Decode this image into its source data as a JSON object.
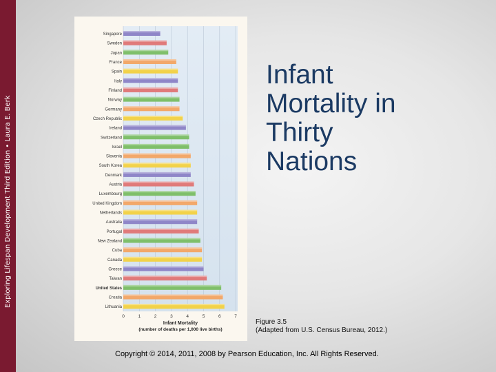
{
  "sidebar": {
    "text": "Exploring Lifespan Development Third Edition • Laura E. Berk"
  },
  "slide": {
    "title": "Infant Mortality in Thirty Nations",
    "caption_line1": "Figure 3.5",
    "caption_line2": "(Adapted from U.S. Census Bureau, 2012.)",
    "copyright": "Copyright © 2014, 2011, 2008 by Pearson Education, Inc. All Rights Reserved."
  },
  "colors": {
    "sidebar": "#7a1a30",
    "title": "#1b3a63",
    "figure_bg": "#fbf7ef",
    "chart_bg": "#dfe9f2"
  },
  "chart_data": {
    "type": "bar",
    "orientation": "horizontal",
    "categories": [
      "Singapore",
      "Sweden",
      "Japan",
      "France",
      "Spain",
      "Italy",
      "Finland",
      "Norway",
      "Germany",
      "Czech Republic",
      "Ireland",
      "Switzerland",
      "Israel",
      "Slovenia",
      "South Korea",
      "Denmark",
      "Austria",
      "Luxembourg",
      "United Kingdom",
      "Netherlands",
      "Australia",
      "Portugal",
      "New Zealand",
      "Cuba",
      "Canada",
      "Greece",
      "Taiwan",
      "United States",
      "Croatia",
      "Lithuania"
    ],
    "values": [
      2.3,
      2.7,
      2.8,
      3.3,
      3.4,
      3.4,
      3.4,
      3.5,
      3.5,
      3.7,
      3.9,
      4.1,
      4.1,
      4.2,
      4.2,
      4.2,
      4.4,
      4.5,
      4.6,
      4.6,
      4.6,
      4.7,
      4.8,
      4.9,
      4.9,
      5.0,
      5.2,
      6.1,
      6.2,
      6.3
    ],
    "bar_colors": [
      "#8f86c8",
      "#e07a7a",
      "#7fbf6a",
      "#f2a86a",
      "#f2d24a",
      "#8f86c8",
      "#e07a7a",
      "#7fbf6a",
      "#f2a86a",
      "#f2d24a",
      "#8f86c8",
      "#7fbf6a",
      "#7fbf6a",
      "#f2a86a",
      "#f2d24a",
      "#8f86c8",
      "#e07a7a",
      "#7fbf6a",
      "#f2a86a",
      "#f2d24a",
      "#8f86c8",
      "#e07a7a",
      "#7fbf6a",
      "#f2a86a",
      "#f2d24a",
      "#8f86c8",
      "#e07a7a",
      "#7fbf6a",
      "#f2a86a",
      "#f2d24a"
    ],
    "xlim": [
      0,
      7
    ],
    "xticks": [
      "0",
      "1",
      "2",
      "3",
      "4",
      "5",
      "6",
      "7"
    ],
    "xlabel_line1": "Infant Mortality",
    "xlabel_line2": "(number of deaths per 1,000 live births)",
    "bold_categories": [
      "United States"
    ],
    "grid": true
  }
}
